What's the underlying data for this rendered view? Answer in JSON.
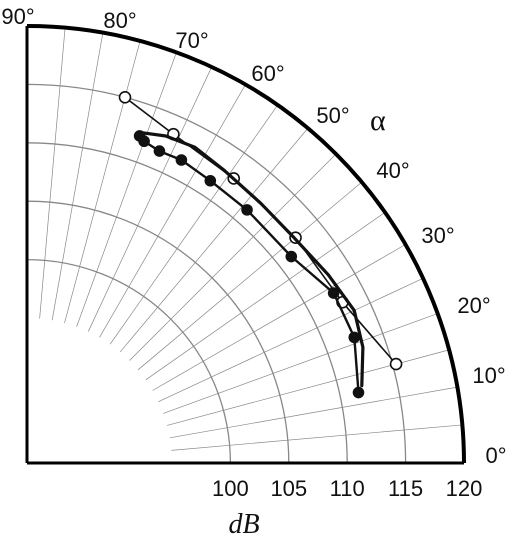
{
  "chart_data": {
    "type": "polar-line",
    "angle_axis": {
      "label": "α",
      "unit": "°",
      "range": [
        0,
        90
      ],
      "tick_step": 10,
      "tick_labels": [
        "0°",
        "10°",
        "20°",
        "30°",
        "40°",
        "50°",
        "60°",
        "70°",
        "80°",
        "90°"
      ]
    },
    "radial_axis": {
      "label": "dB",
      "range": [
        95,
        120
      ],
      "ticks": [
        100,
        105,
        110,
        115,
        120
      ],
      "tick_labels": [
        "100",
        "105",
        "110",
        "115",
        "120"
      ]
    },
    "grid": true,
    "series": [
      {
        "marker": "open-circle",
        "points": [
          {
            "angle": 15,
            "value": 115.3
          },
          {
            "angle": 27,
            "value": 112.9
          },
          {
            "angle": 40,
            "value": 112.6
          },
          {
            "angle": 54,
            "value": 112.7
          },
          {
            "angle": 66,
            "value": 113.4
          },
          {
            "angle": 75,
            "value": 115.0
          }
        ]
      },
      {
        "marker": "filled-circle",
        "points": [
          {
            "angle": 12,
            "value": 111.6
          },
          {
            "angle": 21,
            "value": 112.6
          },
          {
            "angle": 29,
            "value": 112.6
          },
          {
            "angle": 38,
            "value": 111.3
          },
          {
            "angle": 49,
            "value": 111.3
          },
          {
            "angle": 57,
            "value": 111.4
          },
          {
            "angle": 63,
            "value": 111.7
          },
          {
            "angle": 67,
            "value": 111.6
          },
          {
            "angle": 70,
            "value": 111.9
          },
          {
            "angle": 71,
            "value": 112.2
          }
        ]
      },
      {
        "marker": "none",
        "points": [
          {
            "angle": 13,
            "value": 112.0
          },
          {
            "angle": 19,
            "value": 113.0
          },
          {
            "angle": 25,
            "value": 113.5
          },
          {
            "angle": 32,
            "value": 113.0
          },
          {
            "angle": 40,
            "value": 112.5
          },
          {
            "angle": 48,
            "value": 112.5
          },
          {
            "angle": 56,
            "value": 112.8
          },
          {
            "angle": 62,
            "value": 113.2
          },
          {
            "angle": 67,
            "value": 113.0
          },
          {
            "angle": 71,
            "value": 112.5
          }
        ]
      }
    ]
  },
  "colors": {
    "line": "#111111",
    "grid": "#888888",
    "outer_arc": "#000000",
    "marker_open_fill": "#ffffff",
    "marker_filled_fill": "#111111"
  }
}
